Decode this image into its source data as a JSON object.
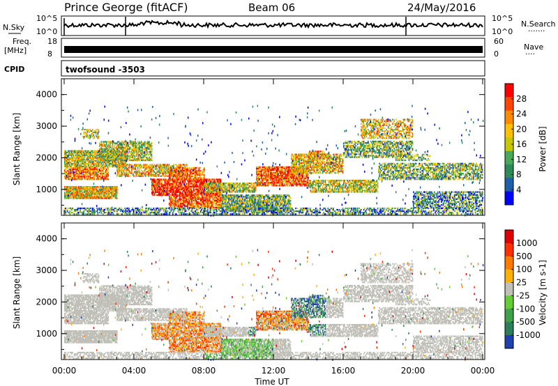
{
  "header": {
    "title": "Prince George (fitACF)",
    "beam": "Beam 06",
    "date": "24/May/2016"
  },
  "strips": {
    "nsky_label": "N.Sky",
    "nsearch_label": "N.Search",
    "nsky_ticks": [
      "10^5",
      "10^0"
    ],
    "freq_label_1": "Freq.",
    "freq_label_2": "[MHz]",
    "freq_ticks": [
      "18",
      "8"
    ],
    "nave_label": "Nave",
    "nave_ticks": [
      "60",
      "0"
    ],
    "cpid_label": "CPID",
    "cpid_value": "twofsound -3503"
  },
  "chart_data": [
    {
      "type": "heatmap",
      "panel": "power",
      "ylabel": "Slant Range [km]",
      "ylim": [
        180,
        4500
      ],
      "yticks": [
        "1000",
        "2000",
        "3000",
        "4000"
      ],
      "xlim": [
        0,
        24
      ],
      "colorbar_label": "Power [dB]",
      "colorbar_ticks": [
        "4",
        "8",
        "12",
        "16",
        "20",
        "24",
        "28"
      ],
      "colors": [
        "#0000ff",
        "#1f5faa",
        "#2e8b57",
        "#4aa85a",
        "#c8c800",
        "#ffc000",
        "#ff8c00",
        "#ff4500",
        "#ff0000"
      ]
    },
    {
      "type": "heatmap",
      "panel": "velocity",
      "ylabel": "Slant Range [km]",
      "ylim": [
        180,
        4500
      ],
      "yticks": [
        "1000",
        "2000",
        "3000",
        "4000"
      ],
      "xlim": [
        0,
        24
      ],
      "xticks": [
        "00:00",
        "04:00",
        "08:00",
        "12:00",
        "16:00",
        "20:00",
        "00:00"
      ],
      "xlabel": "Time UT",
      "colorbar_label": "Velocity [m s-1]",
      "colorbar_ticks": [
        "1000",
        "500",
        "100",
        "25",
        "-25",
        "-100",
        "-500",
        "-1000"
      ],
      "colors": [
        "#2040b0",
        "#2e7d5a",
        "#3fa24a",
        "#66cc33",
        "#c0c0b8",
        "#ffb000",
        "#ff7a00",
        "#ff3000",
        "#e00000"
      ]
    }
  ]
}
